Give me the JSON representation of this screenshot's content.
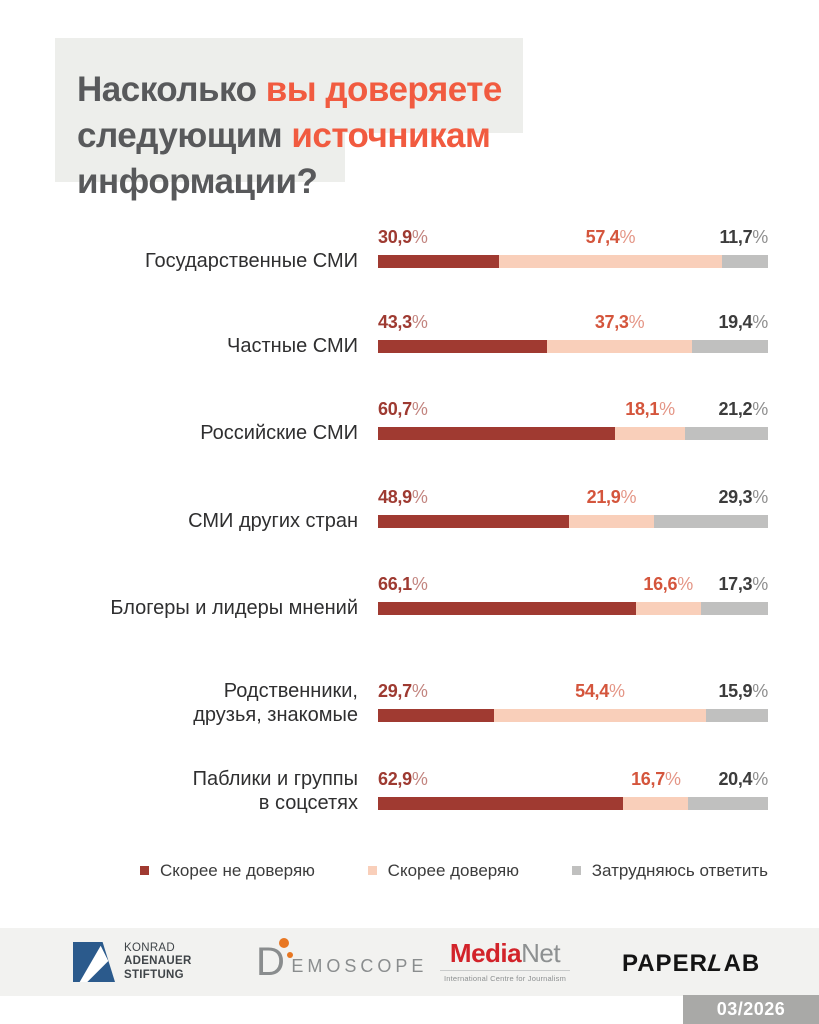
{
  "ui": {
    "percent_sign": "%",
    "colors": {
      "title_gray": "#58595B",
      "title_accent": "#F15B40",
      "title_box": "#EDEEEB",
      "distrust": "#A03A31",
      "trust": "#F9CFBA",
      "undecided": "#C0C0BF",
      "footer_band": "#F2F2F0",
      "badge_bg": "#A9A9A7",
      "kas_blue": "#2B5A8C",
      "medianet_red": "#D2232A",
      "logo_gray": "#8A8D8E"
    }
  },
  "title": {
    "line1_gray": "Насколько ",
    "line1_accent": "вы доверяете",
    "line2_gray": "следующим ",
    "line2_accent": "источникам",
    "line3_gray": "информации?"
  },
  "chart_data": {
    "type": "bar",
    "stacked": true,
    "orientation": "horizontal",
    "title": "Насколько вы доверяете следующим источникам информации?",
    "xlim": [
      0,
      100
    ],
    "value_format": "percent, comma decimal",
    "legend_position": "bottom",
    "categories": [
      "Государственные СМИ",
      "Частные СМИ",
      "Российские СМИ",
      "СМИ других стран",
      "Блогеры и лидеры мнений",
      "Родственники, друзья, знакомые",
      "Паблики и группы в соцсетях"
    ],
    "series": [
      {
        "name": "Скорее не доверяю",
        "color": "#A03A31",
        "values": [
          30.9,
          43.3,
          60.7,
          48.9,
          66.1,
          29.7,
          62.9
        ]
      },
      {
        "name": "Скорее доверяю",
        "color": "#F9CFBA",
        "values": [
          57.4,
          37.3,
          18.1,
          21.9,
          16.6,
          54.4,
          16.7
        ]
      },
      {
        "name": "Затрудняюсь ответить",
        "color": "#C0C0BF",
        "values": [
          11.7,
          19.4,
          21.2,
          29.3,
          17.3,
          15.9,
          20.4
        ]
      }
    ],
    "rows": [
      {
        "label_lines": [
          "Государственные СМИ"
        ],
        "values": [
          30.9,
          57.4,
          11.7
        ],
        "display": [
          "30,9",
          "57,4",
          "11,7"
        ]
      },
      {
        "label_lines": [
          "Частные СМИ"
        ],
        "values": [
          43.3,
          37.3,
          19.4
        ],
        "display": [
          "43,3",
          "37,3",
          "19,4"
        ]
      },
      {
        "label_lines": [
          "Российские СМИ"
        ],
        "values": [
          60.7,
          18.1,
          21.2
        ],
        "display": [
          "60,7",
          "18,1",
          "21,2"
        ]
      },
      {
        "label_lines": [
          "СМИ других стран"
        ],
        "values": [
          48.9,
          21.9,
          29.3
        ],
        "display": [
          "48,9",
          "21,9",
          "29,3"
        ]
      },
      {
        "label_lines": [
          "Блогеры и лидеры мнений"
        ],
        "values": [
          66.1,
          16.6,
          17.3
        ],
        "display": [
          "66,1",
          "16,6",
          "17,3"
        ]
      },
      {
        "label_lines": [
          "Родственники,",
          "друзья, знакомые"
        ],
        "values": [
          29.7,
          54.4,
          15.9
        ],
        "display": [
          "29,7",
          "54,4",
          "15,9"
        ]
      },
      {
        "label_lines": [
          "Паблики и группы",
          "в соцсетях"
        ],
        "values": [
          62.9,
          16.7,
          20.4
        ],
        "display": [
          "62,9",
          "16,7",
          "20,4"
        ]
      }
    ]
  },
  "legend": {
    "items": [
      {
        "label": "Скорее не доверяю"
      },
      {
        "label": "Скорее доверяю"
      },
      {
        "label": "Затрудняюсь ответить"
      }
    ]
  },
  "footer": {
    "kas": {
      "line1": "KONRAD",
      "line2": "ADENAUER",
      "line3": "STIFTUNG"
    },
    "demoscope": {
      "d": "D",
      "rest": "EMOSCOPE"
    },
    "medianet": {
      "part1": "Media",
      "part2": "Net",
      "tagline": "International Centre for Journalism"
    },
    "paperlab": {
      "part1": "PAPER",
      "part2": "L",
      "part3": "AB"
    },
    "badge": "03/2026"
  }
}
